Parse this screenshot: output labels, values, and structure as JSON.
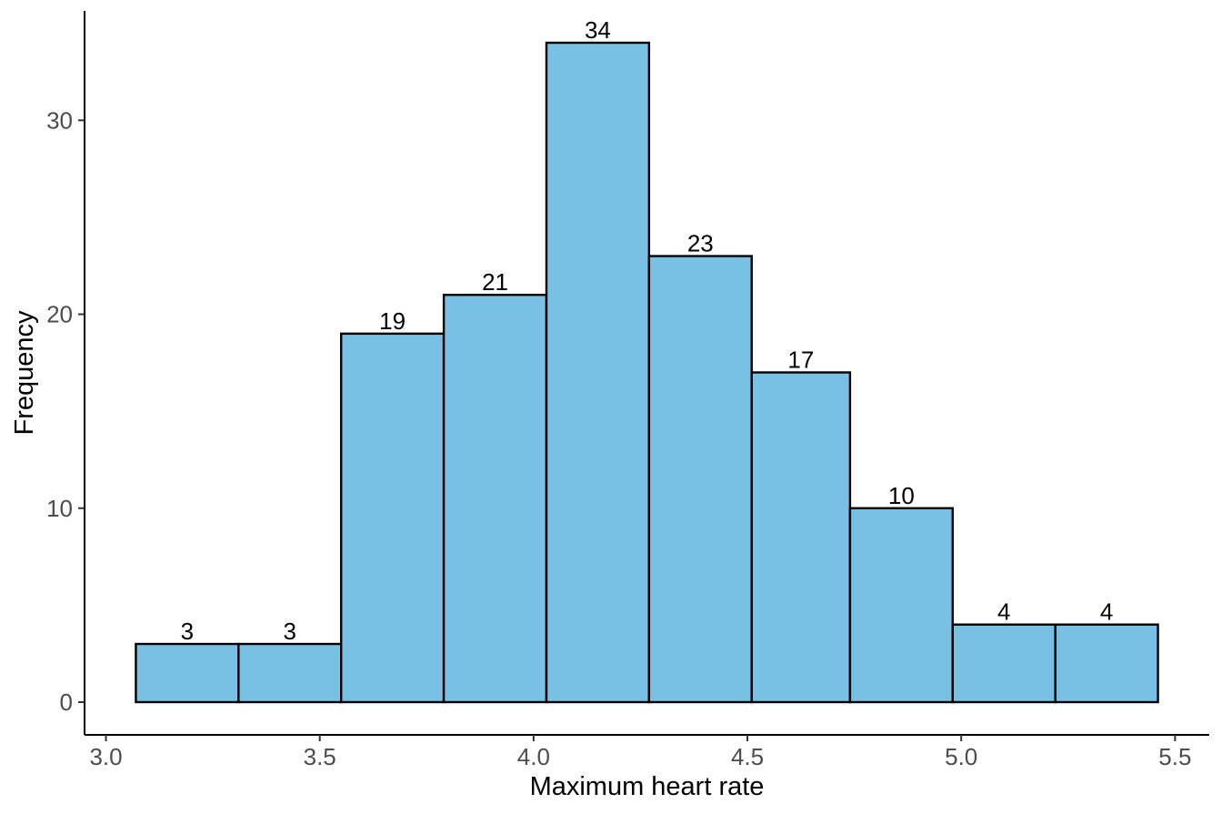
{
  "chart_data": {
    "type": "bar",
    "title": "",
    "xlabel": "Maximum heart rate",
    "ylabel": "Frequency",
    "bins": [
      [
        3.07,
        3.31
      ],
      [
        3.31,
        3.55
      ],
      [
        3.55,
        3.79
      ],
      [
        3.79,
        4.03
      ],
      [
        4.03,
        4.27
      ],
      [
        4.27,
        4.51
      ],
      [
        4.51,
        4.74
      ],
      [
        4.74,
        4.98
      ],
      [
        4.98,
        5.22
      ],
      [
        5.22,
        5.46
      ]
    ],
    "values": [
      3,
      3,
      19,
      21,
      34,
      23,
      17,
      10,
      4,
      4
    ],
    "xlim": [
      2.95,
      5.58
    ],
    "ylim": [
      0,
      35.7
    ],
    "xticks": [
      3.0,
      3.5,
      4.0,
      4.5,
      5.0,
      5.5
    ],
    "xtick_labels": [
      "3.0",
      "3.5",
      "4.0",
      "4.5",
      "5.0",
      "5.5"
    ],
    "yticks": [
      0,
      10,
      20,
      30
    ],
    "ytick_labels": [
      "0",
      "10",
      "20",
      "30"
    ],
    "grid": false,
    "bar_fill": "#79c1e4",
    "bar_stroke": "#000000"
  }
}
